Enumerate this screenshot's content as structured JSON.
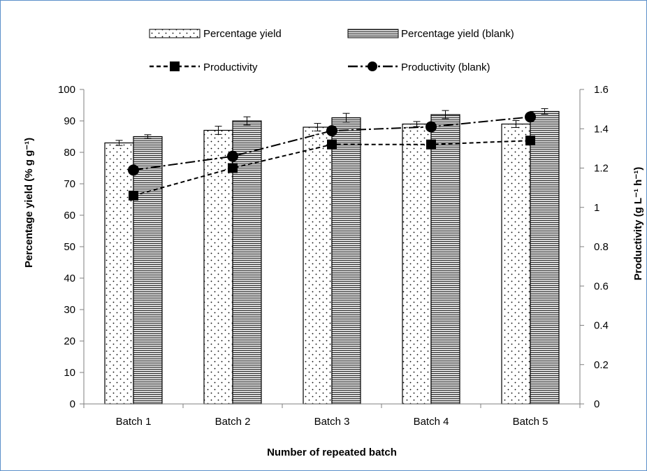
{
  "chart_data": {
    "type": "bar",
    "categories": [
      "Batch 1",
      "Batch 2",
      "Batch 3",
      "Batch 4",
      "Batch 5"
    ],
    "series": [
      {
        "name": "Percentage yield",
        "kind": "bar",
        "axis": "left",
        "pattern": "dots",
        "values": [
          83,
          87,
          88,
          89,
          89
        ],
        "errors": [
          0.8,
          1.3,
          1.2,
          0.8,
          1.1
        ]
      },
      {
        "name": "Percentage yield (blank)",
        "kind": "bar",
        "axis": "left",
        "pattern": "horizontal-lines",
        "values": [
          85,
          90,
          91,
          92,
          93
        ],
        "errors": [
          0.6,
          1.3,
          1.4,
          1.3,
          0.9
        ]
      },
      {
        "name": "Productivity",
        "kind": "line",
        "axis": "right",
        "marker": "square",
        "dash": "dashed",
        "values": [
          1.06,
          1.2,
          1.32,
          1.32,
          1.34
        ]
      },
      {
        "name": "Productivity (blank)",
        "kind": "line",
        "axis": "right",
        "marker": "circle",
        "dash": "dash-dot",
        "values": [
          1.19,
          1.26,
          1.39,
          1.41,
          1.46
        ]
      }
    ],
    "xlabel": "Number of repeated batch",
    "ylabel": "Percentage yield (% g g⁻¹)",
    "y2label": "Productivity (g L⁻¹ h⁻¹)",
    "ylim": [
      0,
      100
    ],
    "y2lim": [
      0,
      1.6
    ],
    "yticks": [
      "0",
      "10",
      "20",
      "30",
      "40",
      "50",
      "60",
      "70",
      "80",
      "90",
      "100"
    ],
    "y2ticks": [
      "0",
      "0.2",
      "0.4",
      "0.6",
      "0.8",
      "1",
      "1.2",
      "1.4",
      "1.6"
    ],
    "grid": false,
    "legend": "top",
    "colors": {
      "border": "#5b8fc9",
      "ink": "#000000",
      "blank_bar_fill": "#d9d9d9"
    }
  }
}
